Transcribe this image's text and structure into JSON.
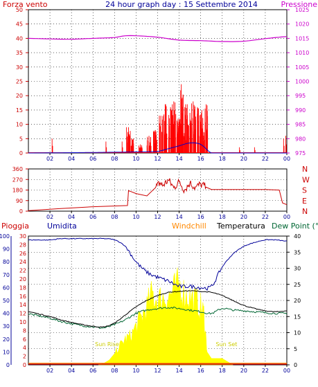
{
  "title": "24 hour graph day : 15 Settembre 2014",
  "x_ticks": [
    "02",
    "04",
    "06",
    "08",
    "10",
    "12",
    "14",
    "16",
    "18",
    "20",
    "22",
    "00"
  ],
  "colors": {
    "wind": "#ff0000",
    "gust": "#0000cc",
    "pressure": "#cc00cc",
    "direction": "#cc0000",
    "rain": "#cc0000",
    "humidity": "#000099",
    "windchill": "#ff8800",
    "temperature": "#000000",
    "dewpoint": "#006633",
    "solar": "#ffff00",
    "solar_label": "#cccc00",
    "grid": "#000000"
  },
  "chart_data": [
    {
      "type": "line",
      "panel": "wind-pressure",
      "left_label": "Forza vento",
      "right_label": "Pressione",
      "ylim_left": [
        0,
        50
      ],
      "yticks_left": [
        0,
        5,
        10,
        15,
        20,
        25,
        30,
        35,
        40,
        45,
        50
      ],
      "ylim_right": [
        975,
        1025
      ],
      "yticks_right": [
        975,
        980,
        985,
        990,
        995,
        1000,
        1005,
        1010,
        1015,
        1020,
        1025
      ],
      "pressure": {
        "x": [
          0,
          2,
          4,
          6,
          8,
          9,
          10,
          12,
          14,
          16,
          18,
          20,
          22,
          24
        ],
        "values": [
          1015.0,
          1014.8,
          1014.7,
          1015.0,
          1015.3,
          1015.9,
          1015.9,
          1015.4,
          1014.4,
          1014.2,
          1013.9,
          1014.0,
          1014.9,
          1015.6
        ]
      },
      "wind_gusts": {
        "x": [
          2.2,
          7.2,
          8.7,
          9.3,
          9.6,
          10.4,
          11.2,
          11.8,
          12.3,
          12.7,
          13.2,
          13.5,
          13.9,
          14.2,
          14.6,
          15.0,
          15.3,
          15.7,
          16.1,
          16.5,
          19.6,
          21.0,
          23.7,
          23.9
        ],
        "values": [
          5,
          4,
          4,
          9,
          5,
          3,
          6,
          8,
          13,
          17,
          16,
          18,
          12,
          24,
          17,
          14,
          18,
          16,
          15,
          17,
          2,
          2,
          5,
          6
        ]
      },
      "wind_avg": {
        "x": [
          0,
          12.0,
          13.0,
          14.0,
          15.0,
          16.0,
          17.0,
          24
        ],
        "values": [
          0,
          0.5,
          1.5,
          2.5,
          3.5,
          3.0,
          0,
          0
        ]
      }
    },
    {
      "type": "line",
      "panel": "wind-direction",
      "ylim": [
        0,
        360
      ],
      "yticks": [
        0,
        90,
        180,
        270,
        360
      ],
      "right_ticks": [
        "N",
        "W",
        "S",
        "E",
        "N"
      ],
      "x": [
        0,
        3,
        6,
        9.2,
        9.3,
        10,
        11,
        11.8,
        12.2,
        12.5,
        13.0,
        13.5,
        14.0,
        14.5,
        15.0,
        15.5,
        16.0,
        16.5,
        17,
        20,
        22,
        23.3,
        23.6,
        24
      ],
      "values": [
        5,
        22,
        38,
        48,
        175,
        150,
        130,
        200,
        240,
        220,
        265,
        200,
        250,
        180,
        240,
        200,
        230,
        205,
        185,
        185,
        185,
        180,
        70,
        55
      ]
    },
    {
      "type": "line",
      "panel": "temperature-humidity",
      "legend": [
        "Pioggia",
        "Umidita",
        "Windchill",
        "Temperatura",
        "Dew Point (°C"
      ],
      "ylim_humidity": [
        0,
        100
      ],
      "yticks_humidity": [
        0,
        10,
        20,
        30,
        40,
        50,
        60,
        70,
        80,
        90,
        100
      ],
      "ylim_rain": [
        0,
        30
      ],
      "yticks_rain": [
        0,
        2,
        4,
        6,
        8,
        10,
        12,
        14,
        16,
        18,
        20,
        22,
        24,
        26,
        28,
        30
      ],
      "ylim_temp": [
        0,
        40
      ],
      "yticks_temp": [
        0,
        5,
        10,
        15,
        20,
        25,
        30,
        35,
        40
      ],
      "annotations": [
        "Sun Rise",
        "Sun Set"
      ],
      "x": [
        0,
        1,
        2,
        3,
        4,
        5,
        6,
        7,
        8,
        9,
        10,
        11,
        12,
        13,
        14,
        15,
        16,
        17,
        18,
        19,
        20,
        21,
        22,
        23,
        24
      ],
      "temperature": [
        16.5,
        15.8,
        15.0,
        14.0,
        13.2,
        12.5,
        12.0,
        11.8,
        13.0,
        15.5,
        18.0,
        20.0,
        21.5,
        22.5,
        22.8,
        23.0,
        22.8,
        22.5,
        21.5,
        20.0,
        18.5,
        17.5,
        16.8,
        16.5,
        16.8
      ],
      "dewpoint": [
        15.8,
        15.2,
        14.5,
        13.5,
        12.8,
        12.2,
        11.8,
        11.5,
        12.5,
        14.0,
        16.0,
        17.0,
        17.5,
        17.8,
        17.5,
        17.0,
        16.5,
        16.0,
        17.5,
        17.0,
        16.8,
        16.5,
        16.2,
        16.0,
        16.0
      ],
      "humidity": [
        97,
        97,
        97,
        98,
        98,
        98,
        98,
        98,
        97,
        92,
        80,
        72,
        68,
        65,
        61,
        61,
        60,
        61,
        76,
        86,
        92,
        95,
        97,
        97,
        96
      ],
      "solar_x": [
        6.5,
        7.0,
        7.5,
        8.0,
        8.5,
        9.0,
        9.5,
        10.0,
        10.5,
        11.0,
        11.5,
        12.0,
        12.5,
        13.0,
        13.5,
        14.0,
        14.5,
        15.0,
        15.5,
        16.0,
        16.3,
        16.6,
        17.0,
        17.5,
        18.0,
        18.5,
        19.0
      ],
      "solar_values": [
        0,
        0.5,
        1.5,
        3.5,
        6,
        8,
        9,
        12,
        15,
        18,
        22,
        20,
        21,
        21,
        23,
        25,
        22,
        21,
        20,
        18,
        16,
        4,
        2,
        2,
        2,
        1,
        0
      ],
      "rain": [
        0,
        0,
        0,
        0,
        0,
        0,
        0,
        0,
        0,
        0,
        0,
        0,
        0,
        0,
        0,
        0,
        0,
        0,
        0,
        0,
        0,
        0,
        0,
        0,
        0
      ]
    }
  ]
}
